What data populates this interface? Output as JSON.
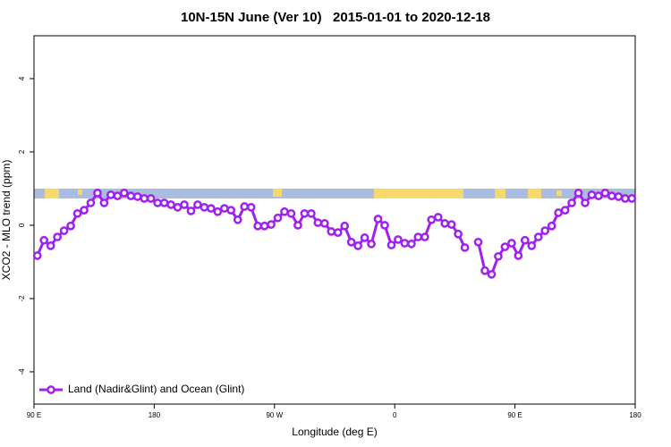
{
  "chart_data": {
    "type": "line",
    "title": "10N-15N June (Ver 10)   2015-01-01 to 2020-12-18",
    "xlabel": "Longitude (deg E)",
    "ylabel": "XCO2 - MLO trend (ppm)",
    "x": [
      92.5,
      97.5,
      102.5,
      107.5,
      112.5,
      117.5,
      122.5,
      127.5,
      132.5,
      137.5,
      142.5,
      147.5,
      152.5,
      157.5,
      162.5,
      167.5,
      172.5,
      177.5,
      182.5,
      187.5,
      192.5,
      197.5,
      202.5,
      207.5,
      212.5,
      217.5,
      222.5,
      227.5,
      232.5,
      237.5,
      242.5,
      247.5,
      252.5,
      257.5,
      262.5,
      267.5,
      272.5,
      277.5,
      282.5,
      287.5,
      292.5,
      297.5,
      302.5,
      307.5,
      312.5,
      317.5,
      322.5,
      327.5,
      332.5,
      337.5,
      342.5,
      347.5,
      352.5,
      357.5,
      362.5,
      367.5,
      372.5,
      377.5,
      382.5,
      387.5,
      392.5,
      397.5,
      402.5,
      407.5,
      412.5,
      417.5,
      422.5,
      427.5,
      432.5,
      437.5,
      442.5,
      447.5,
      452.5,
      457.5,
      462.5,
      467.5,
      472.5,
      477.5,
      482.5,
      487.5,
      492.5,
      497.5,
      502.5,
      507.5,
      512.5,
      517.5,
      522.5,
      527.5,
      532.5,
      537.5
    ],
    "series": [
      {
        "name": "Land (Nadir&Glint) and Ocean (Glint)",
        "color": "#a020f0",
        "values": [
          -0.83,
          -0.41,
          -0.56,
          -0.32,
          -0.15,
          -0.02,
          0.32,
          0.41,
          0.61,
          0.88,
          0.61,
          0.83,
          0.8,
          0.88,
          0.8,
          0.78,
          0.73,
          0.73,
          0.61,
          0.61,
          0.56,
          0.49,
          0.56,
          0.39,
          0.56,
          0.49,
          0.46,
          0.37,
          0.46,
          0.41,
          0.15,
          0.51,
          0.49,
          -0.02,
          -0.02,
          0.02,
          0.2,
          0.37,
          0.32,
          0,
          0.32,
          0.32,
          0.07,
          0.05,
          -0.17,
          -0.2,
          -0.02,
          -0.46,
          -0.56,
          -0.34,
          -0.51,
          0.17,
          0,
          -0.54,
          -0.39,
          -0.49,
          -0.51,
          -0.32,
          -0.32,
          0.15,
          0.22,
          0.05,
          0.02,
          -0.24,
          -0.61,
          null,
          -0.46,
          -1.24,
          -1.34,
          -0.85,
          -0.59,
          -0.49,
          -0.83,
          -0.41,
          -0.56,
          -0.32,
          -0.15,
          -0.02,
          0.34,
          0.41,
          0.61,
          0.88,
          0.61,
          0.83,
          0.8,
          0.88,
          0.8,
          0.78,
          0.73,
          0.73
        ]
      }
    ],
    "xlim": [
      90,
      540
    ],
    "xticks": [
      {
        "value": 90,
        "label": "90 E"
      },
      180,
      {
        "value": 270,
        "label": "90 W"
      },
      {
        "value": 360,
        "label": "0"
      },
      {
        "value": 450,
        "label": "90 E"
      },
      {
        "value": 540,
        "label": "180"
      }
    ],
    "ylim": [
      -4.88,
      5.17
    ],
    "yticks": [
      -4,
      -2,
      0,
      2,
      4
    ],
    "legend": "bottom-left"
  }
}
